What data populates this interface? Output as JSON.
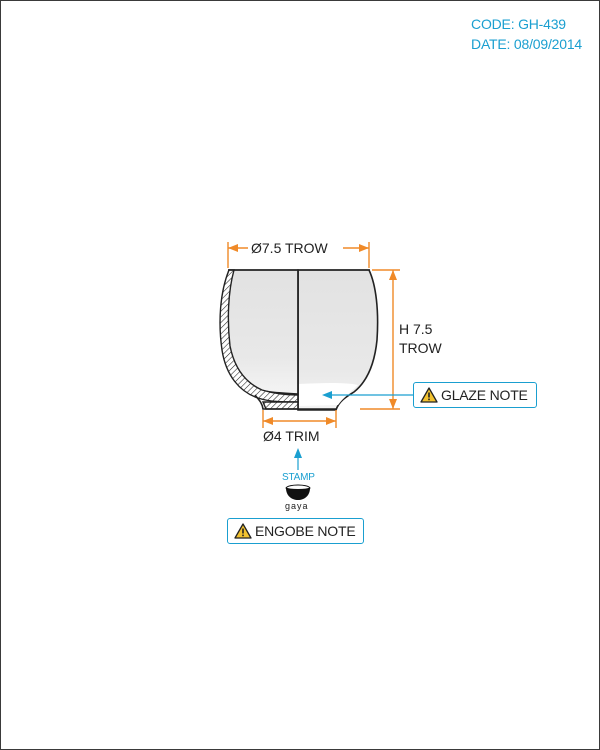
{
  "header": {
    "code": "CODE: GH-439",
    "date": "DATE: 08/09/2014"
  },
  "dimensions": {
    "top_diameter": "Ø7.5 TROW",
    "height_line1": "H 7.5",
    "height_line2": "TROW",
    "foot_diameter": "Ø4 TRIM"
  },
  "notes": {
    "glaze": "GLAZE NOTE",
    "engobe": "ENGOBE NOTE"
  },
  "stamp": {
    "label": "STAMP",
    "mark_text": "gaya"
  },
  "colors": {
    "accent": "#1a9fd0",
    "dimension": "#f08a28",
    "outline": "#222222",
    "body_fill": "#e4e4e4",
    "warning": "#f2c230"
  },
  "icons": {
    "warning": "warning-triangle-icon",
    "stamp": "bowl-stamp-icon"
  }
}
